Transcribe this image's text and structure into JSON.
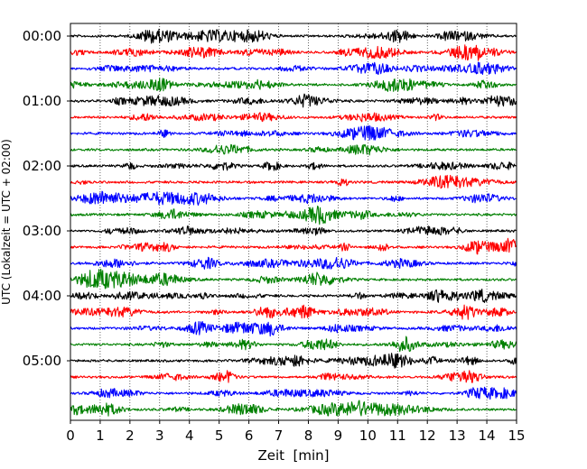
{
  "chart_data": {
    "type": "line",
    "title": "",
    "xlabel": "Zeit  [min]",
    "ylabel": "UTC (Lokalzeit = UTC + 02:00)",
    "xlim": [
      0,
      15
    ],
    "x_ticks": [
      "0",
      "1",
      "2",
      "3",
      "4",
      "5",
      "6",
      "7",
      "8",
      "9",
      "10",
      "11",
      "12",
      "13",
      "14",
      "15"
    ],
    "y_tick_labels": [
      "00:00",
      "01:00",
      "02:00",
      "03:00",
      "04:00",
      "05:00"
    ],
    "trace_interval_minutes": 15,
    "trace_start_times": [
      "00:00",
      "00:15",
      "00:30",
      "00:45",
      "01:00",
      "01:15",
      "01:30",
      "01:45",
      "02:00",
      "02:15",
      "02:30",
      "02:45",
      "03:00",
      "03:15",
      "03:30",
      "03:45",
      "04:00",
      "04:15",
      "04:30",
      "04:45",
      "05:00",
      "05:15",
      "05:30",
      "05:45"
    ],
    "color_cycle": [
      "#000000",
      "#ff0000",
      "#0000ff",
      "#008000"
    ],
    "grid": "vertical dotted lines at each minute",
    "legend": "none"
  }
}
